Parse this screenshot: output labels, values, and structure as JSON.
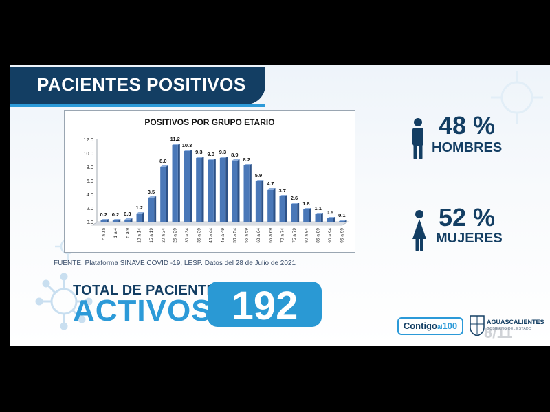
{
  "header": {
    "title": "PACIENTES POSITIVOS"
  },
  "chart_data": {
    "type": "bar",
    "title": "POSITIVOS POR GRUPO ETARIO",
    "xlabel": "",
    "ylabel": "",
    "ylim": [
      0,
      12
    ],
    "yticks": [
      "0.0",
      "2.0",
      "4.0",
      "6.0",
      "8.0",
      "10.0",
      "12.0"
    ],
    "categories": [
      "< a 1a",
      "1 a 4",
      "5 a 9",
      "10 a 14",
      "15 a 19",
      "20 a 24",
      "25 a 29",
      "30 a 34",
      "35 a 39",
      "40 a 44",
      "45 a 49",
      "50 a 54",
      "55 a 59",
      "60 a 64",
      "65 a 69",
      "70 a 74",
      "75 a 79",
      "80 a 84",
      "85 a 89",
      "90 a 94",
      "95 a 99"
    ],
    "values": [
      0.2,
      0.2,
      0.3,
      1.2,
      3.5,
      8.0,
      11.2,
      10.3,
      9.3,
      9.0,
      9.3,
      8.9,
      8.2,
      5.9,
      4.7,
      3.7,
      2.6,
      1.8,
      1.1,
      0.5,
      0.1
    ],
    "value_labels": [
      "0.2",
      "0.2",
      "0.3",
      "1.2",
      "3.5",
      "8.0",
      "11.2",
      "10.3",
      "9.3",
      "9.0",
      "9.3",
      "8.9",
      "8.2",
      "5.9",
      "4.7",
      "3.7",
      "2.6",
      "1.8",
      "1.1",
      "0.5",
      "0.1"
    ],
    "grid": false,
    "legend": "none",
    "bar_color": "#4a78b8"
  },
  "source": "FUENTE. Plataforma SINAVE COVID -19, LESP. Datos del 28 de Julio de 2021",
  "totals": {
    "label_line1": "TOTAL DE PACIENTES",
    "label_line2": "ACTIVOS",
    "value": "192"
  },
  "stats": {
    "men": {
      "percent": "48 %",
      "label": "HOMBRES",
      "icon": "man-icon"
    },
    "women": {
      "percent": "52 %",
      "label": "MUJERES",
      "icon": "woman-icon"
    }
  },
  "logos": {
    "contigo_main": "Contigo",
    "contigo_small": "al",
    "contigo_num": "100",
    "state_name": "AGUASCALIENTES",
    "state_sub": "GOBIERNO DEL ESTADO"
  },
  "page_marker": "8/11",
  "colors": {
    "navy": "#133e63",
    "accent_blue": "#2c9ad8",
    "bar_blue": "#4a78b8"
  }
}
